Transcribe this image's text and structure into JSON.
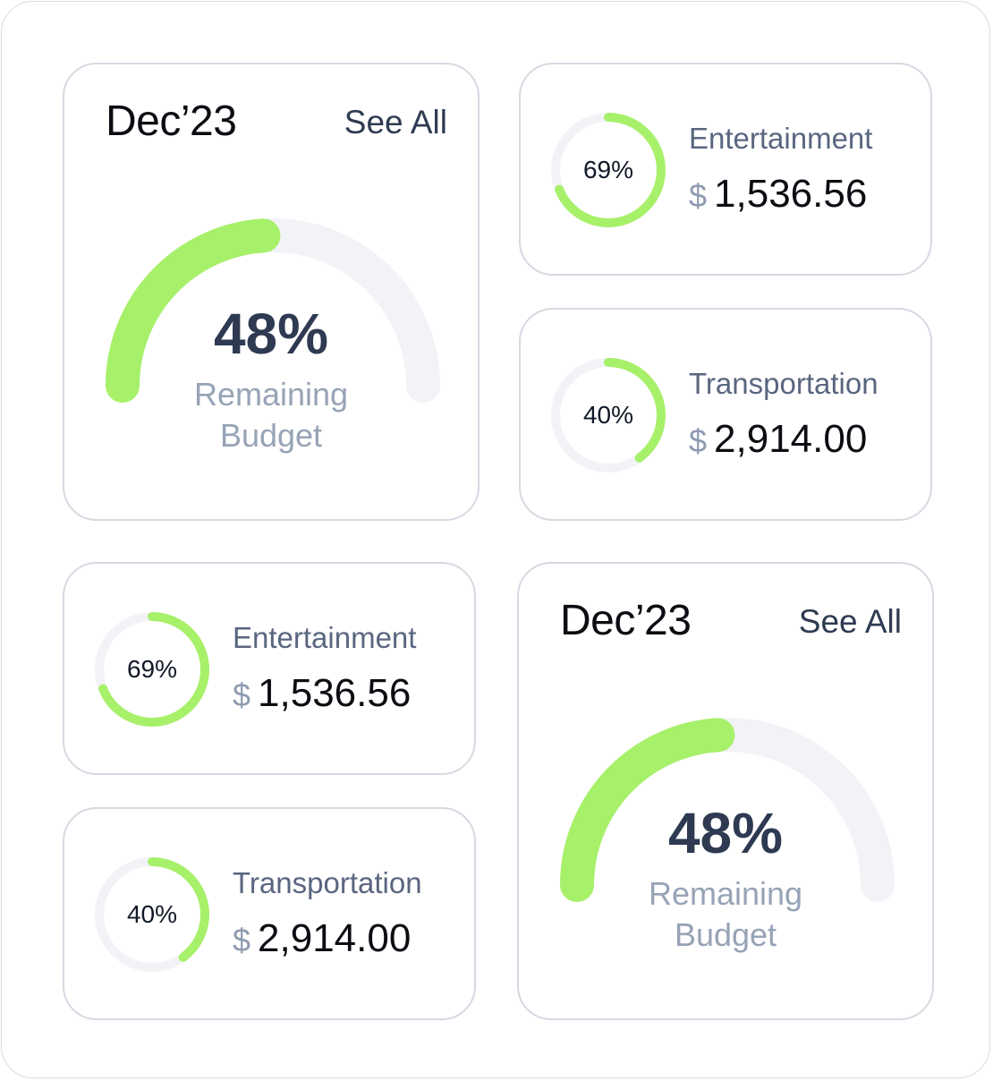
{
  "colors": {
    "accent": "#a7f06a",
    "track": "#f2f3f7",
    "heading": "#2e3a51",
    "muted": "#97a3b6"
  },
  "budget_cards": [
    {
      "month": "Dec’23",
      "see_all": "See All",
      "percent_label": "48%",
      "percent_value": 48,
      "caption_line1": "Remaining",
      "caption_line2": "Budget"
    },
    {
      "month": "Dec’23",
      "see_all": "See All",
      "percent_label": "48%",
      "percent_value": 48,
      "caption_line1": "Remaining",
      "caption_line2": "Budget"
    }
  ],
  "category_cards": [
    {
      "name": "Entertainment",
      "currency": "$",
      "amount": "1,536.56",
      "percent_label": "69%",
      "percent_value": 69
    },
    {
      "name": "Transportation",
      "currency": "$",
      "amount": "2,914.00",
      "percent_label": "40%",
      "percent_value": 40
    },
    {
      "name": "Entertainment",
      "currency": "$",
      "amount": "1,536.56",
      "percent_label": "69%",
      "percent_value": 69
    },
    {
      "name": "Transportation",
      "currency": "$",
      "amount": "2,914.00",
      "percent_label": "40%",
      "percent_value": 40
    }
  ]
}
